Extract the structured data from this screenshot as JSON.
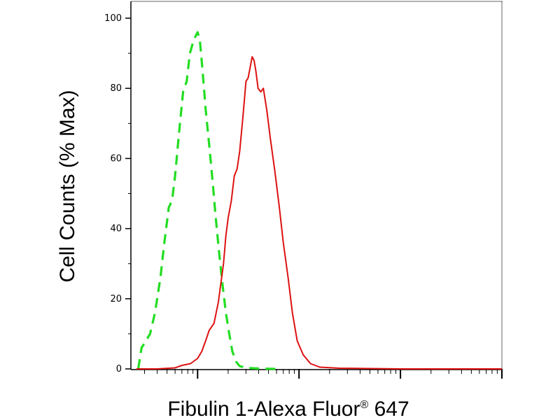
{
  "chart_data": {
    "type": "line",
    "title": "",
    "xlabel_main": "Fibulin 1-Alexa Fluor",
    "xlabel_mark": "®",
    "xlabel_tail": " 647",
    "ylabel": "Cell Counts (% Max)",
    "x_scale": "log",
    "xlim": [
      0.22,
      1000
    ],
    "ylim": [
      0,
      100
    ],
    "y_ticks": [
      0,
      20,
      40,
      60,
      80,
      100
    ],
    "y_tick_labels": [
      "0",
      "20",
      "40",
      "60",
      "80",
      "100"
    ],
    "grid": false,
    "series": [
      {
        "color": "#22dd22",
        "dash": "dashed",
        "points": [
          [
            0.26,
            0
          ],
          [
            0.28,
            6
          ],
          [
            0.31,
            8
          ],
          [
            0.34,
            10
          ],
          [
            0.38,
            16
          ],
          [
            0.43,
            26
          ],
          [
            0.47,
            36
          ],
          [
            0.52,
            46
          ],
          [
            0.56,
            48
          ],
          [
            0.6,
            55
          ],
          [
            0.66,
            68
          ],
          [
            0.72,
            79
          ],
          [
            0.78,
            82
          ],
          [
            0.84,
            90
          ],
          [
            0.88,
            92
          ],
          [
            0.92,
            94
          ],
          [
            0.96,
            95
          ],
          [
            1.0,
            96
          ],
          [
            1.05,
            94
          ],
          [
            1.12,
            85
          ],
          [
            1.2,
            74
          ],
          [
            1.3,
            64
          ],
          [
            1.4,
            54
          ],
          [
            1.5,
            44
          ],
          [
            1.62,
            34
          ],
          [
            1.76,
            24
          ],
          [
            1.9,
            16
          ],
          [
            2.05,
            10
          ],
          [
            2.2,
            5
          ],
          [
            2.4,
            2
          ],
          [
            2.6,
            0.8
          ],
          [
            3.0,
            0.3
          ],
          [
            4.0,
            0.1
          ],
          [
            6.0,
            0
          ]
        ]
      },
      {
        "color": "#dd1111",
        "dash": "solid",
        "points": [
          [
            0.25,
            0
          ],
          [
            0.4,
            0
          ],
          [
            0.6,
            0.3
          ],
          [
            0.7,
            1
          ],
          [
            0.85,
            1.5
          ],
          [
            1.0,
            3
          ],
          [
            1.1,
            5
          ],
          [
            1.2,
            8
          ],
          [
            1.3,
            11
          ],
          [
            1.45,
            13
          ],
          [
            1.6,
            19
          ],
          [
            1.8,
            30
          ],
          [
            1.9,
            38
          ],
          [
            2.0,
            43
          ],
          [
            2.15,
            48
          ],
          [
            2.3,
            55
          ],
          [
            2.45,
            57
          ],
          [
            2.6,
            62
          ],
          [
            2.8,
            72
          ],
          [
            3.0,
            82
          ],
          [
            3.15,
            83
          ],
          [
            3.3,
            86
          ],
          [
            3.45,
            89
          ],
          [
            3.6,
            88
          ],
          [
            3.75,
            85
          ],
          [
            3.95,
            80
          ],
          [
            4.2,
            79
          ],
          [
            4.45,
            80
          ],
          [
            4.8,
            74
          ],
          [
            5.2,
            66
          ],
          [
            5.8,
            56
          ],
          [
            6.4,
            46
          ],
          [
            7.0,
            36
          ],
          [
            7.8,
            26
          ],
          [
            8.6,
            16
          ],
          [
            9.6,
            8
          ],
          [
            11,
            4
          ],
          [
            13,
            1.5
          ],
          [
            16,
            0.5
          ],
          [
            25,
            0.2
          ],
          [
            100,
            0
          ],
          [
            1000,
            0
          ]
        ]
      }
    ]
  }
}
